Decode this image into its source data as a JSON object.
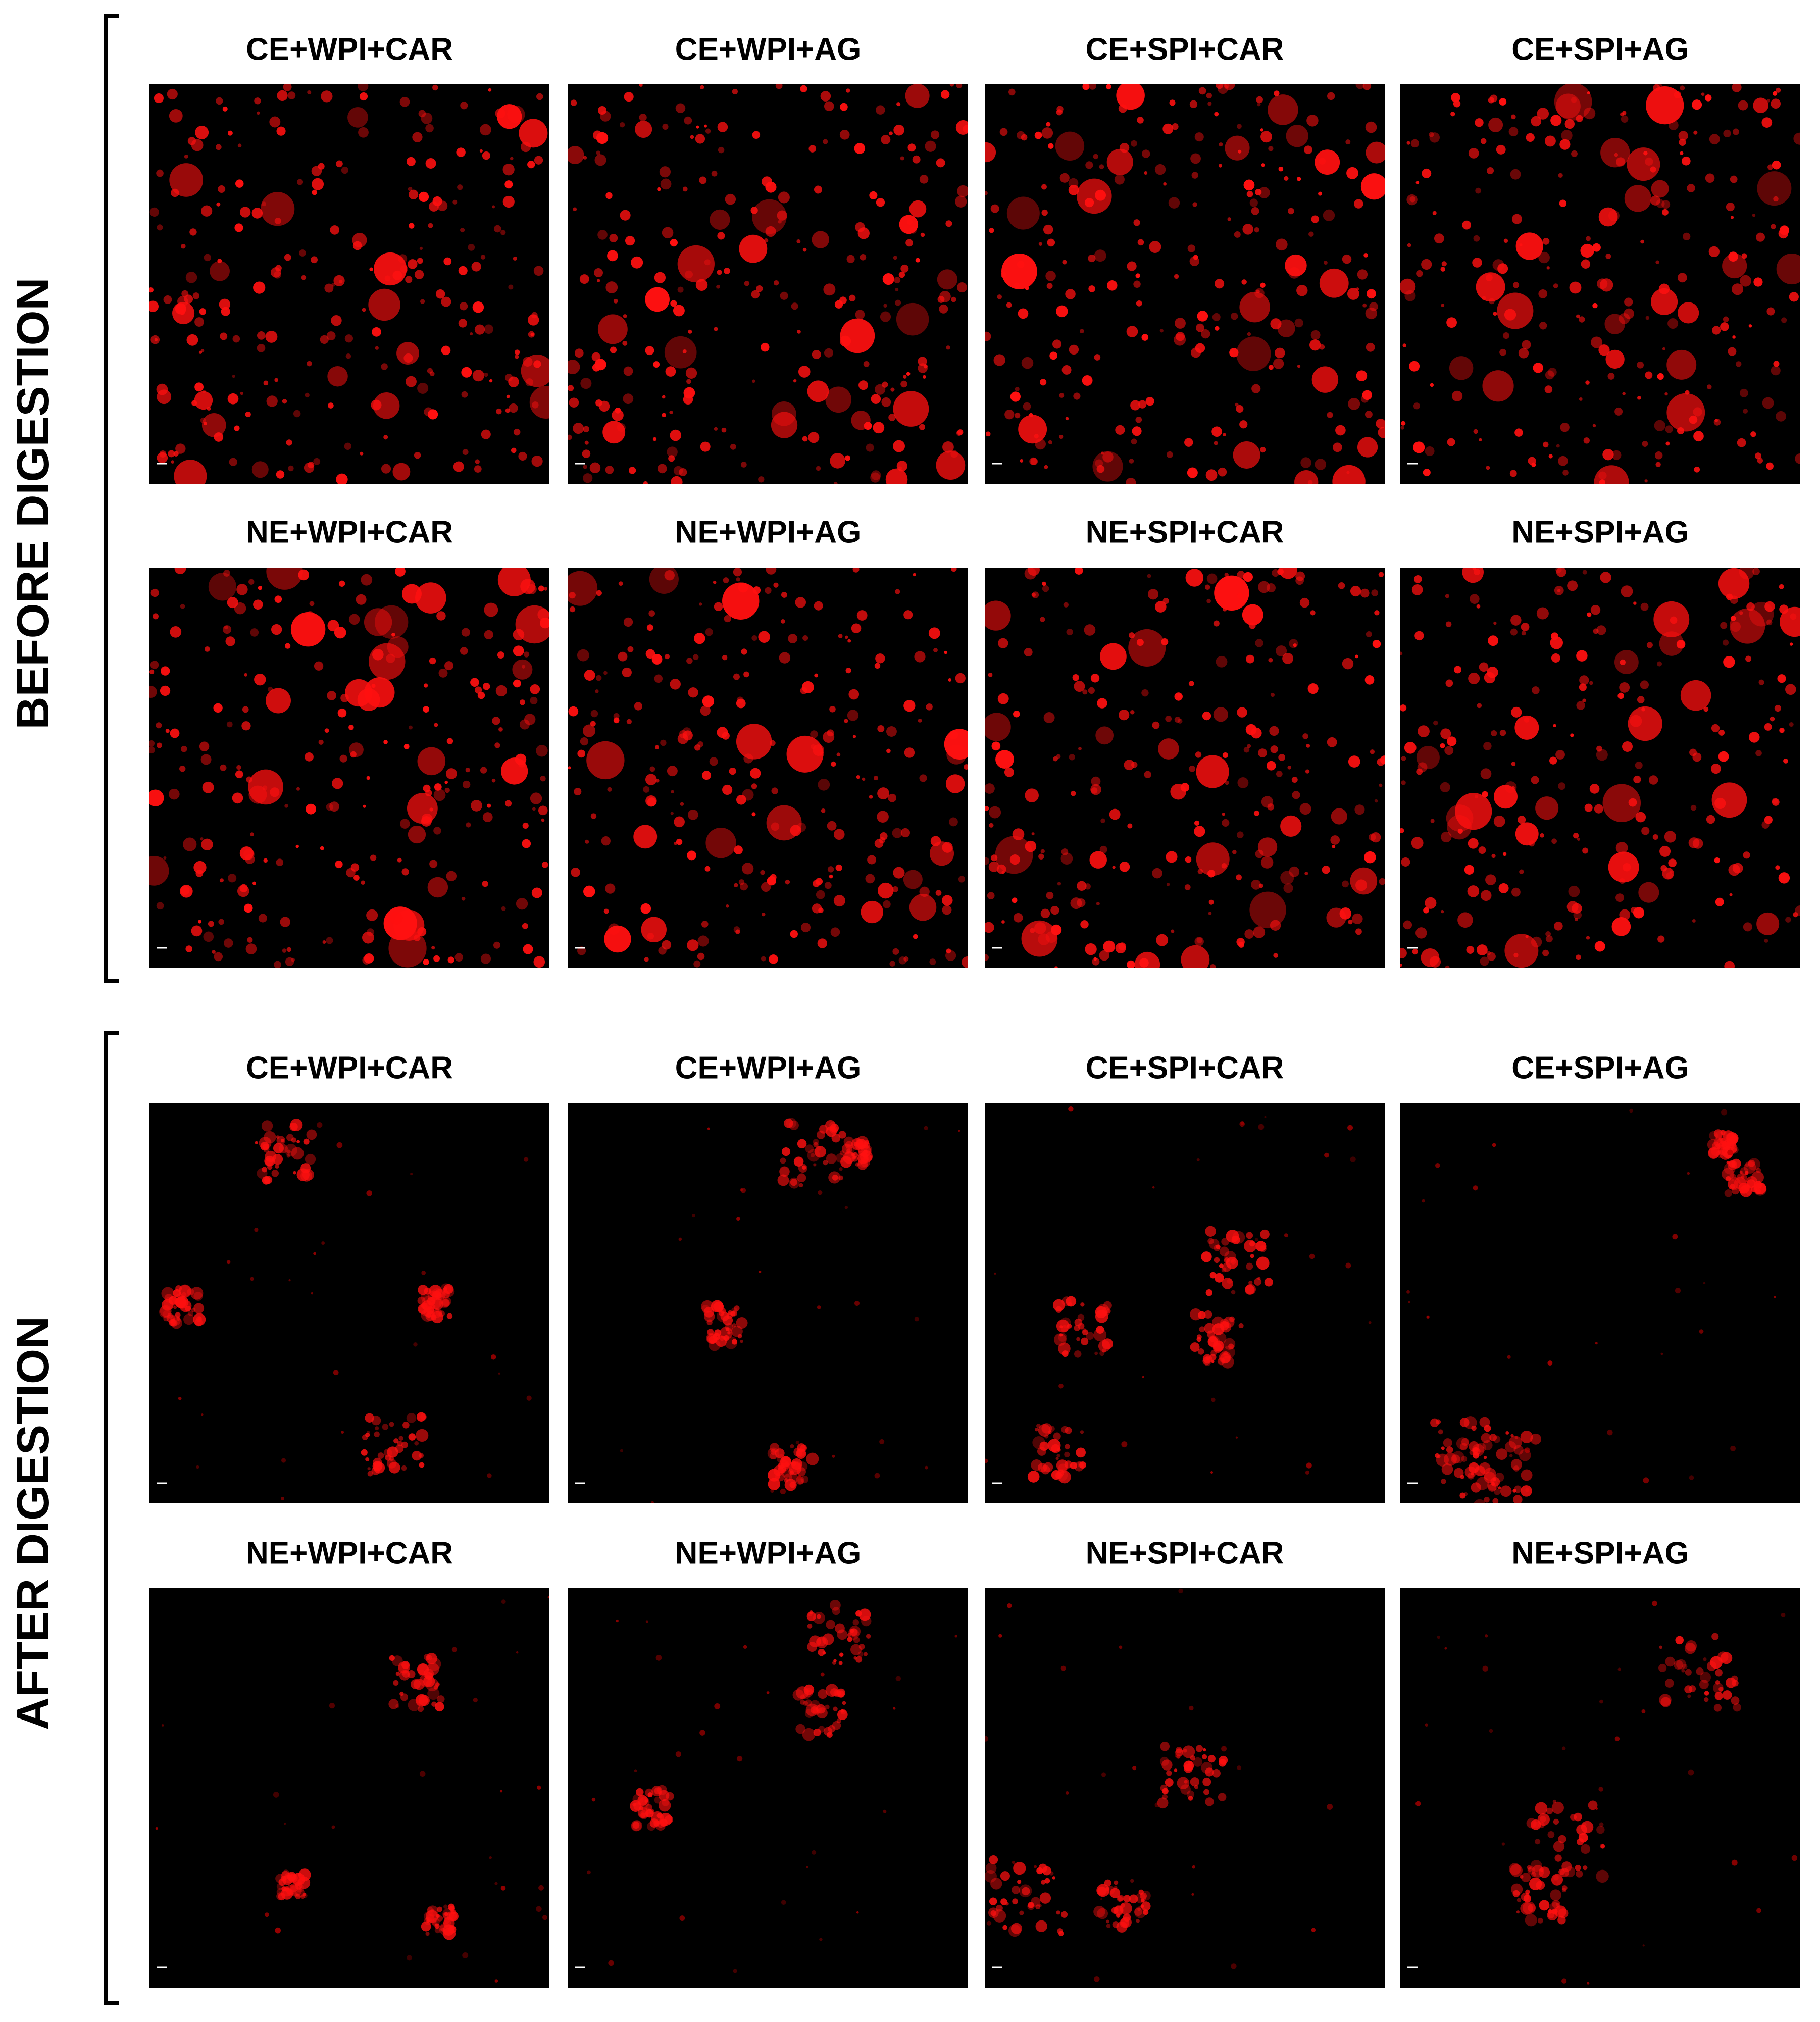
{
  "sections": [
    {
      "label": "BEFORE DIGESTION",
      "panels": [
        {
          "title": "CE+WPI+CAR"
        },
        {
          "title": "CE+WPI+AG"
        },
        {
          "title": "CE+SPI+CAR"
        },
        {
          "title": "CE+SPI+AG"
        },
        {
          "title": "NE+WPI+CAR"
        },
        {
          "title": "NE+WPI+AG"
        },
        {
          "title": "NE+SPI+CAR"
        },
        {
          "title": "NE+SPI+AG"
        }
      ]
    },
    {
      "label": "AFTER DIGESTION",
      "panels": [
        {
          "title": "CE+WPI+CAR"
        },
        {
          "title": "CE+WPI+AG"
        },
        {
          "title": "CE+SPI+CAR"
        },
        {
          "title": "CE+SPI+AG"
        },
        {
          "title": "NE+WPI+CAR"
        },
        {
          "title": "NE+WPI+AG"
        },
        {
          "title": "NE+SPI+CAR"
        },
        {
          "title": "NE+SPI+AG"
        }
      ]
    }
  ]
}
